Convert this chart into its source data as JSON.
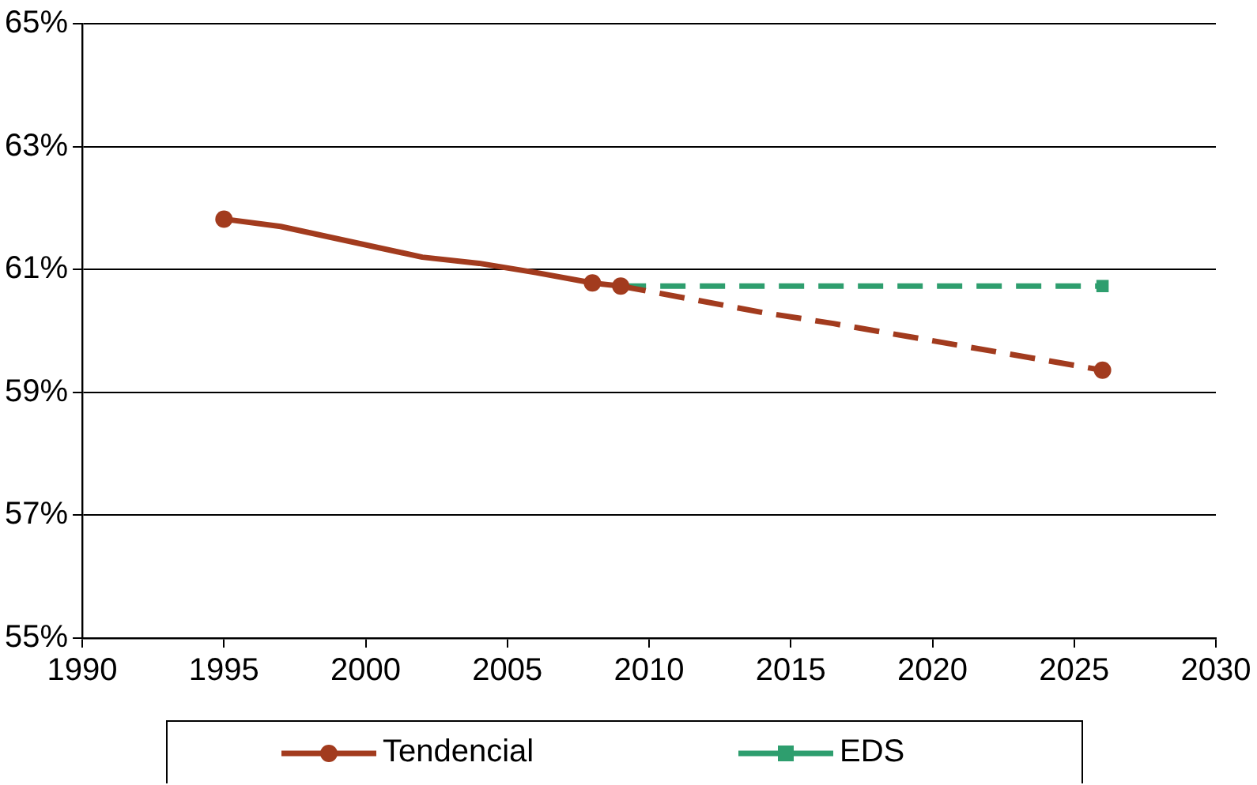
{
  "chart_data": {
    "type": "line",
    "series": [
      {
        "name": "Tendencial",
        "type": "scatter",
        "color": "#a23b1e",
        "marker": "circle",
        "x": [
          1995,
          2008,
          2009,
          2026
        ],
        "values": [
          61.82,
          60.78,
          60.73,
          59.36
        ]
      },
      {
        "type": "line",
        "color": "#a23b1e",
        "marker": "none",
        "line_style": "solid",
        "x": [
          1995,
          1997,
          2002,
          2004,
          2006,
          2008,
          2009
        ],
        "values": [
          61.82,
          61.7,
          61.2,
          61.1,
          60.95,
          60.78,
          60.73
        ]
      },
      {
        "type": "line",
        "color": "#a23b1e",
        "marker": "none",
        "line_style": "dashed",
        "x": [
          2009,
          2014,
          2016.5,
          2026
        ],
        "values": [
          60.73,
          60.3,
          60.12,
          59.36
        ]
      },
      {
        "name": "EDS",
        "type": "line",
        "color": "#2e9e6e",
        "marker": "square",
        "line_style": "dashed",
        "x": [
          2009,
          2026
        ],
        "values": [
          60.73,
          60.73
        ]
      }
    ],
    "xlim": [
      1990,
      2030
    ],
    "xticks": [
      1990,
      1995,
      2000,
      2005,
      2010,
      2015,
      2020,
      2025,
      2030
    ],
    "ylim": [
      55,
      65
    ],
    "yticks": [
      {
        "value": 55,
        "label": "55%"
      },
      {
        "value": 57,
        "label": "57%"
      },
      {
        "value": 59,
        "label": "59%"
      },
      {
        "value": 61,
        "label": "61%"
      },
      {
        "value": 63,
        "label": "63%"
      },
      {
        "value": 65,
        "label": "65%"
      }
    ],
    "grid": "y",
    "legend": "bottom"
  }
}
